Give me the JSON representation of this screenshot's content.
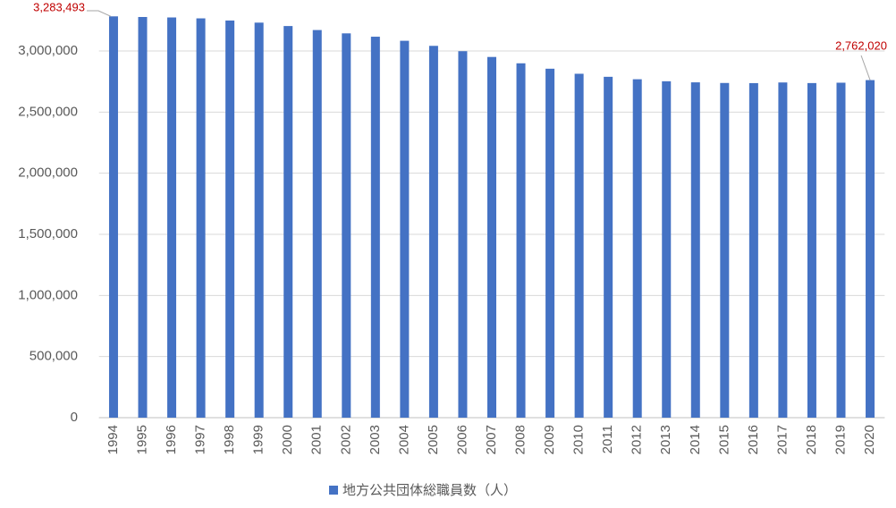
{
  "chart_data": {
    "type": "bar",
    "categories": [
      "1994",
      "1995",
      "1996",
      "1997",
      "1998",
      "1999",
      "2000",
      "2001",
      "2002",
      "2003",
      "2004",
      "2005",
      "2006",
      "2007",
      "2008",
      "2009",
      "2010",
      "2011",
      "2012",
      "2013",
      "2014",
      "2015",
      "2016",
      "2017",
      "2018",
      "2019",
      "2020"
    ],
    "series": [
      {
        "name": "地方公共団体総職員数（人）",
        "color": "#4472c4",
        "values": [
          3283493,
          3278332,
          3274481,
          3267118,
          3249494,
          3232158,
          3204297,
          3171532,
          3144323,
          3117004,
          3083597,
          3042122,
          2998402,
          2951296,
          2899378,
          2855106,
          2813875,
          2788989,
          2768913,
          2752484,
          2743654,
          2738337,
          2737263,
          2742596,
          2737679,
          2740653,
          2762020
        ],
        "value_labels": [
          "3,283,493",
          null,
          null,
          null,
          null,
          null,
          null,
          null,
          null,
          null,
          null,
          null,
          null,
          null,
          null,
          null,
          null,
          null,
          null,
          null,
          null,
          null,
          null,
          null,
          null,
          null,
          "2,762,020"
        ]
      }
    ],
    "ylim": [
      0,
      3500000
    ],
    "yticks": [
      0,
      {
        "value": 500000,
        "label": "500,000"
      },
      {
        "value": 1000000,
        "label": "1,000,000"
      },
      {
        "value": 1500000,
        "label": "1,500,000"
      },
      {
        "value": 2000000,
        "label": "2,000,000"
      },
      {
        "value": 2500000,
        "label": "2,500,000"
      },
      {
        "value": 3000000,
        "label": "3,000,000"
      }
    ],
    "grid": true,
    "legend": "bottom"
  }
}
